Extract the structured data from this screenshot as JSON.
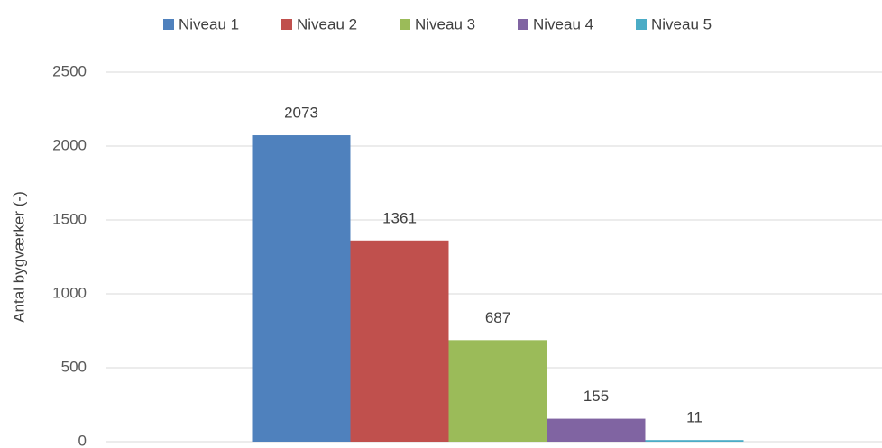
{
  "chart_data": {
    "type": "bar",
    "y_label": "Antal bygværker (-)",
    "categories": [
      null
    ],
    "series": [
      {
        "name": "Niveau 1",
        "color": "#4f81bd",
        "values": [
          2073
        ]
      },
      {
        "name": "Niveau 2",
        "color": "#c0504d",
        "values": [
          1361
        ]
      },
      {
        "name": "Niveau 3",
        "color": "#9bbb59",
        "values": [
          687
        ]
      },
      {
        "name": "Niveau 4",
        "color": "#8064a2",
        "values": [
          155
        ]
      },
      {
        "name": "Niveau 5",
        "color": "#4bacc6",
        "values": [
          11
        ]
      }
    ],
    "ylim": [
      0,
      2500
    ],
    "yticks": [
      0,
      500,
      1000,
      1500,
      2000,
      2500
    ],
    "grid": true,
    "legend": "top"
  }
}
